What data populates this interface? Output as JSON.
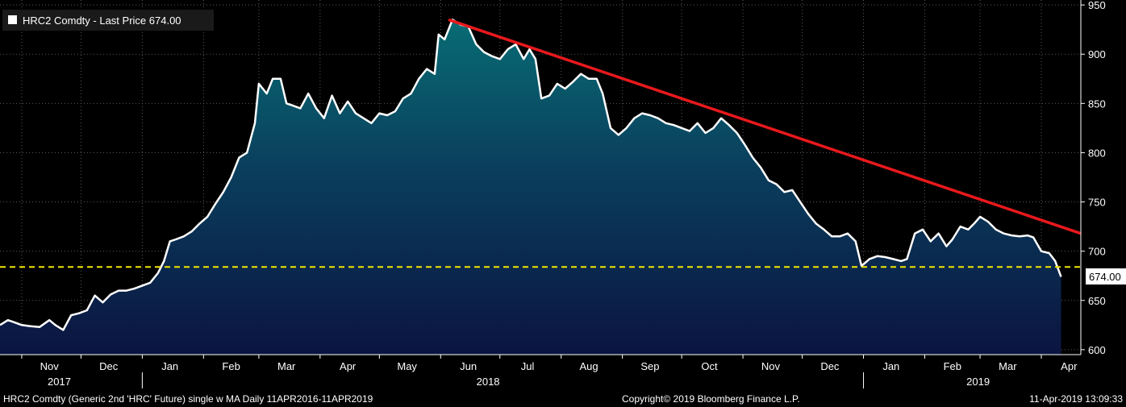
{
  "chart_data": {
    "type": "area",
    "legend": "HRC2 Comdty - Last Price 674.00",
    "legend_position": "top-left",
    "footer_left": "HRC2 Comdty (Generic 2nd 'HRC' Future) single w MA  Daily 11APR2016-11APR2019",
    "footer_center": "Copyright© 2019 Bloomberg Finance L.P.",
    "footer_right": "11-Apr-2019 13:09:33",
    "last_price_label": "674.00",
    "ylim": [
      595,
      955
    ],
    "yticks": [
      600,
      650,
      700,
      750,
      800,
      850,
      900,
      950
    ],
    "ytick_labels": [
      "600",
      "650",
      "700",
      "750",
      "800",
      "850",
      "900",
      "950"
    ],
    "grid": true,
    "x_start": "2017-10-21",
    "x_end": "2019-04-21",
    "month_labels": [
      {
        "label": "Nov",
        "date": "2017-11-15"
      },
      {
        "label": "Dec",
        "date": "2017-12-15"
      },
      {
        "label": "Jan",
        "date": "2018-01-15"
      },
      {
        "label": "Feb",
        "date": "2018-02-15"
      },
      {
        "label": "Mar",
        "date": "2018-03-15"
      },
      {
        "label": "Apr",
        "date": "2018-04-15"
      },
      {
        "label": "May",
        "date": "2018-05-15"
      },
      {
        "label": "Jun",
        "date": "2018-06-15"
      },
      {
        "label": "Jul",
        "date": "2018-07-15"
      },
      {
        "label": "Aug",
        "date": "2018-08-15"
      },
      {
        "label": "Sep",
        "date": "2018-09-15"
      },
      {
        "label": "Oct",
        "date": "2018-10-15"
      },
      {
        "label": "Nov",
        "date": "2018-11-15"
      },
      {
        "label": "Dec",
        "date": "2018-12-15"
      },
      {
        "label": "Jan",
        "date": "2019-01-15"
      },
      {
        "label": "Feb",
        "date": "2019-02-15"
      },
      {
        "label": "Mar",
        "date": "2019-03-15"
      },
      {
        "label": "Apr",
        "date": "2019-04-15"
      }
    ],
    "year_labels": [
      {
        "label": "2017",
        "date": "2017-11-20"
      },
      {
        "label": "2018",
        "date": "2018-06-25"
      },
      {
        "label": "2019",
        "date": "2019-02-28"
      }
    ],
    "year_separators": [
      "2018-01-01",
      "2019-01-01"
    ],
    "reference_line": {
      "value": 684,
      "color": "#f2e600",
      "style": "dashed"
    },
    "trend_line": {
      "from": {
        "date": "2018-06-05",
        "value": 935
      },
      "to": {
        "date": "2019-04-21",
        "value": 718
      },
      "color": "#e8191c"
    },
    "series": [
      {
        "color": "#ffffff",
        "points": [
          [
            "2017-10-21",
            625
          ],
          [
            "2017-10-25",
            630
          ],
          [
            "2017-10-28",
            628
          ],
          [
            "2017-11-01",
            625
          ],
          [
            "2017-11-05",
            624
          ],
          [
            "2017-11-10",
            623
          ],
          [
            "2017-11-15",
            630
          ],
          [
            "2017-11-18",
            625
          ],
          [
            "2017-11-22",
            620
          ],
          [
            "2017-11-26",
            635
          ],
          [
            "2017-11-30",
            637
          ],
          [
            "2017-12-04",
            640
          ],
          [
            "2017-12-08",
            655
          ],
          [
            "2017-12-12",
            648
          ],
          [
            "2017-12-16",
            656
          ],
          [
            "2017-12-20",
            660
          ],
          [
            "2017-12-24",
            660
          ],
          [
            "2017-12-28",
            662
          ],
          [
            "2018-01-01",
            665
          ],
          [
            "2018-01-05",
            668
          ],
          [
            "2018-01-09",
            678
          ],
          [
            "2018-01-12",
            690
          ],
          [
            "2018-01-15",
            710
          ],
          [
            "2018-01-18",
            712
          ],
          [
            "2018-01-22",
            715
          ],
          [
            "2018-01-26",
            720
          ],
          [
            "2018-01-30",
            728
          ],
          [
            "2018-02-03",
            735
          ],
          [
            "2018-02-07",
            748
          ],
          [
            "2018-02-11",
            760
          ],
          [
            "2018-02-15",
            775
          ],
          [
            "2018-02-19",
            795
          ],
          [
            "2018-02-23",
            800
          ],
          [
            "2018-02-27",
            830
          ],
          [
            "2018-03-01",
            870
          ],
          [
            "2018-03-05",
            860
          ],
          [
            "2018-03-08",
            875
          ],
          [
            "2018-03-12",
            875
          ],
          [
            "2018-03-15",
            850
          ],
          [
            "2018-03-18",
            848
          ],
          [
            "2018-03-22",
            845
          ],
          [
            "2018-03-26",
            860
          ],
          [
            "2018-03-30",
            845
          ],
          [
            "2018-04-03",
            835
          ],
          [
            "2018-04-07",
            858
          ],
          [
            "2018-04-11",
            840
          ],
          [
            "2018-04-15",
            852
          ],
          [
            "2018-04-19",
            840
          ],
          [
            "2018-04-23",
            835
          ],
          [
            "2018-04-27",
            830
          ],
          [
            "2018-05-01",
            840
          ],
          [
            "2018-05-05",
            838
          ],
          [
            "2018-05-09",
            842
          ],
          [
            "2018-05-13",
            855
          ],
          [
            "2018-05-17",
            860
          ],
          [
            "2018-05-21",
            875
          ],
          [
            "2018-05-25",
            885
          ],
          [
            "2018-05-29",
            880
          ],
          [
            "2018-05-31",
            920
          ],
          [
            "2018-06-03",
            915
          ],
          [
            "2018-06-07",
            935
          ],
          [
            "2018-06-11",
            930
          ],
          [
            "2018-06-15",
            928
          ],
          [
            "2018-06-19",
            910
          ],
          [
            "2018-06-23",
            902
          ],
          [
            "2018-06-27",
            898
          ],
          [
            "2018-07-01",
            895
          ],
          [
            "2018-07-05",
            905
          ],
          [
            "2018-07-09",
            910
          ],
          [
            "2018-07-13",
            895
          ],
          [
            "2018-07-16",
            905
          ],
          [
            "2018-07-19",
            895
          ],
          [
            "2018-07-22",
            855
          ],
          [
            "2018-07-26",
            858
          ],
          [
            "2018-07-30",
            870
          ],
          [
            "2018-08-03",
            865
          ],
          [
            "2018-08-07",
            872
          ],
          [
            "2018-08-11",
            880
          ],
          [
            "2018-08-15",
            875
          ],
          [
            "2018-08-19",
            875
          ],
          [
            "2018-08-22",
            860
          ],
          [
            "2018-08-26",
            825
          ],
          [
            "2018-08-30",
            818
          ],
          [
            "2018-09-03",
            825
          ],
          [
            "2018-09-07",
            835
          ],
          [
            "2018-09-11",
            840
          ],
          [
            "2018-09-15",
            838
          ],
          [
            "2018-09-19",
            835
          ],
          [
            "2018-09-23",
            830
          ],
          [
            "2018-09-27",
            828
          ],
          [
            "2018-10-01",
            825
          ],
          [
            "2018-10-05",
            822
          ],
          [
            "2018-10-09",
            830
          ],
          [
            "2018-10-13",
            820
          ],
          [
            "2018-10-17",
            825
          ],
          [
            "2018-10-21",
            835
          ],
          [
            "2018-10-25",
            828
          ],
          [
            "2018-10-29",
            820
          ],
          [
            "2018-11-02",
            808
          ],
          [
            "2018-11-06",
            795
          ],
          [
            "2018-11-10",
            785
          ],
          [
            "2018-11-14",
            772
          ],
          [
            "2018-11-18",
            768
          ],
          [
            "2018-11-22",
            760
          ],
          [
            "2018-11-26",
            762
          ],
          [
            "2018-11-30",
            750
          ],
          [
            "2018-12-04",
            738
          ],
          [
            "2018-12-08",
            728
          ],
          [
            "2018-12-12",
            722
          ],
          [
            "2018-12-16",
            715
          ],
          [
            "2018-12-20",
            715
          ],
          [
            "2018-12-24",
            718
          ],
          [
            "2018-12-28",
            710
          ],
          [
            "2018-12-31",
            685
          ],
          [
            "2019-01-04",
            692
          ],
          [
            "2019-01-08",
            695
          ],
          [
            "2019-01-12",
            694
          ],
          [
            "2019-01-16",
            692
          ],
          [
            "2019-01-20",
            690
          ],
          [
            "2019-01-23",
            692
          ],
          [
            "2019-01-27",
            718
          ],
          [
            "2019-01-31",
            722
          ],
          [
            "2019-02-04",
            710
          ],
          [
            "2019-02-08",
            718
          ],
          [
            "2019-02-12",
            705
          ],
          [
            "2019-02-15",
            712
          ],
          [
            "2019-02-19",
            725
          ],
          [
            "2019-02-23",
            722
          ],
          [
            "2019-02-26",
            728
          ],
          [
            "2019-03-01",
            735
          ],
          [
            "2019-03-05",
            730
          ],
          [
            "2019-03-09",
            722
          ],
          [
            "2019-03-13",
            718
          ],
          [
            "2019-03-17",
            716
          ],
          [
            "2019-03-21",
            715
          ],
          [
            "2019-03-25",
            716
          ],
          [
            "2019-03-28",
            714
          ],
          [
            "2019-04-01",
            700
          ],
          [
            "2019-04-05",
            698
          ],
          [
            "2019-04-08",
            690
          ],
          [
            "2019-04-11",
            674
          ]
        ]
      }
    ]
  }
}
